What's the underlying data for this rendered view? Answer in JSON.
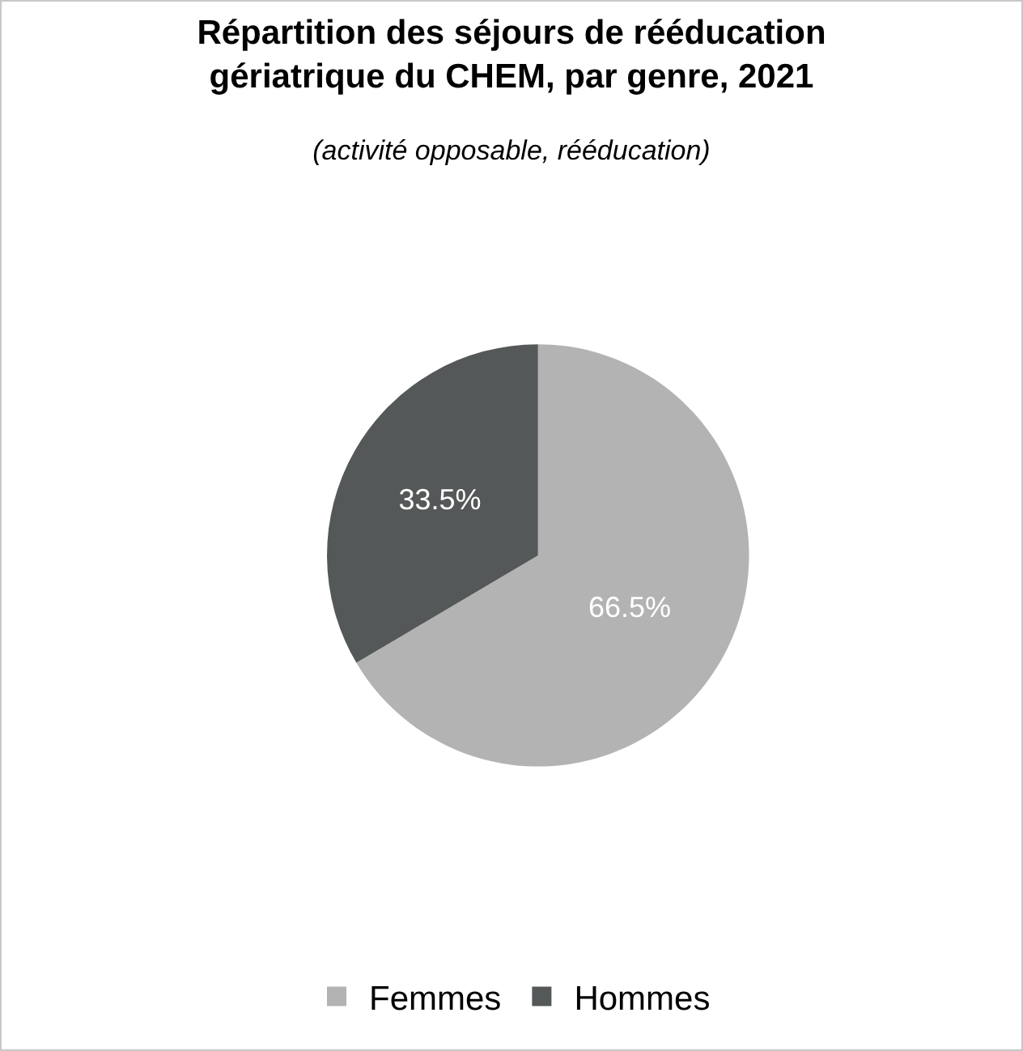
{
  "chart_data": {
    "type": "pie",
    "title": "Répartition des séjours de rééducation\ngériatrique du CHEM, par genre, 2021",
    "subtitle": "(activité opposable, rééducation)",
    "categories": [
      "Femmes",
      "Hommes"
    ],
    "values": [
      66.5,
      33.5
    ],
    "value_labels": [
      "66.5%",
      "33.5%"
    ],
    "colors": [
      "#b3b3b3",
      "#555858"
    ],
    "legend": "bottom"
  }
}
